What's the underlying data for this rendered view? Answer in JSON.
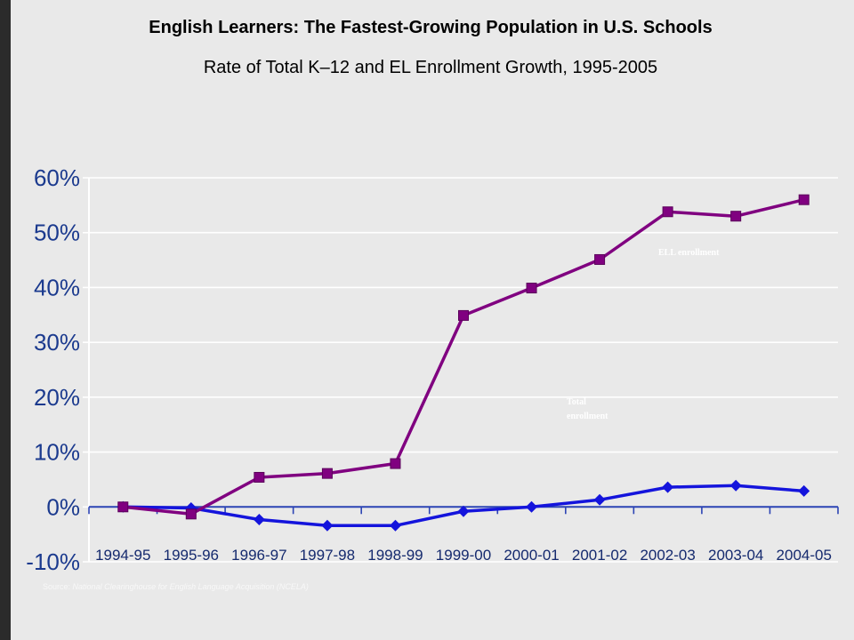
{
  "source": {
    "label": "Source:",
    "text": "National Clearinghouse for English Language Acquisition (NCELA)"
  },
  "chart_data": {
    "type": "line",
    "title": "English Learners: The Fastest-Growing Population in U.S. Schools",
    "subtitle": "Rate of Total K–12 and EL Enrollment Growth, 1995-2005",
    "categories": [
      "1994-95",
      "1995-96",
      "1996-97",
      "1997-98",
      "1998-99",
      "1999-00",
      "2000-01",
      "2001-02",
      "2002-03",
      "2003-04",
      "2004-05"
    ],
    "ylim": [
      -10,
      60
    ],
    "y_ticks": [
      -10,
      0,
      10,
      20,
      30,
      40,
      50,
      60
    ],
    "y_tick_labels": [
      "-10%",
      "0%",
      "10%",
      "20%",
      "30%",
      "40%",
      "50%",
      "60%"
    ],
    "grid": true,
    "series": [
      {
        "name": "ELL enrollment",
        "marker": "square",
        "color": "#800080",
        "values": [
          0,
          -1.3,
          5.4,
          6.1,
          7.9,
          34.9,
          39.9,
          45.1,
          53.8,
          53.0,
          56.0
        ]
      },
      {
        "name": "Total enrollment",
        "marker": "diamond",
        "color": "#1414dc",
        "values": [
          0,
          -0.2,
          -2.3,
          -3.4,
          -3.4,
          -0.8,
          0,
          1.3,
          3.6,
          3.9,
          2.9
        ]
      }
    ]
  }
}
